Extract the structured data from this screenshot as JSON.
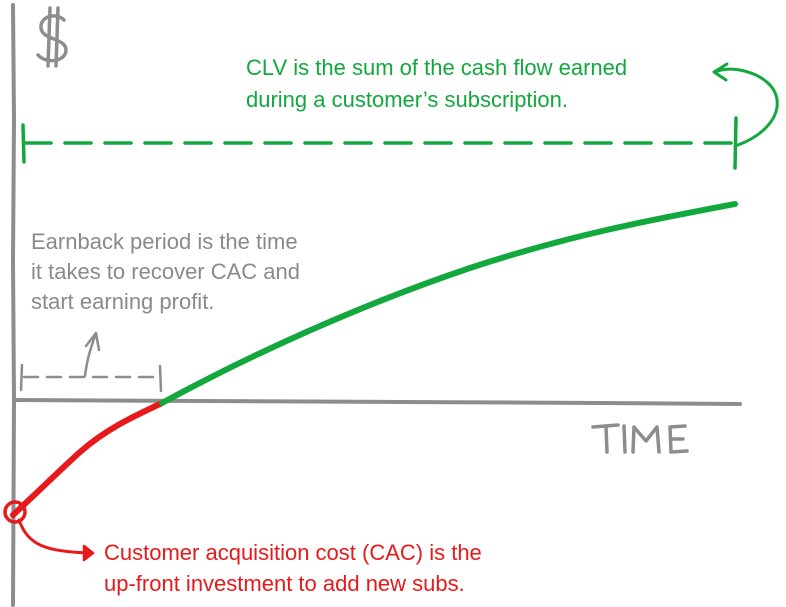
{
  "axes": {
    "y_label": "$",
    "x_label": "TIME"
  },
  "annotations": {
    "clv": {
      "line1": "CLV is the sum of the cash flow earned",
      "line2": "during a customer’s subscription."
    },
    "earnback": {
      "line1": "Earnback period is the time",
      "line2": "it takes to recover CAC and",
      "line3": "start earning profit."
    },
    "cac": {
      "line1": "Customer acquisition cost (CAC) is the",
      "line2": "up-front investment to add new subs."
    }
  },
  "colors": {
    "green": "#13a83e",
    "red": "#e8191b",
    "gray": "#8a8a8a",
    "axis": "#8d8d8d"
  }
}
